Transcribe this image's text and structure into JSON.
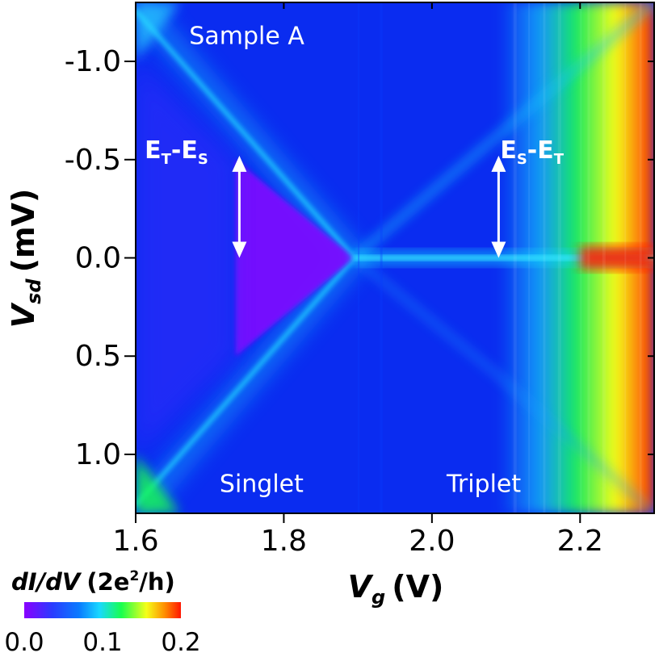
{
  "chart_data": {
    "type": "heatmap",
    "title": "",
    "xlabel": {
      "main": "V",
      "sub": "g",
      "unit": "(V)"
    },
    "ylabel": {
      "main": "V",
      "sub": "sd",
      "unit": "(mV)"
    },
    "xlim": [
      1.6,
      2.3
    ],
    "ylim": [
      -1.3,
      1.3
    ],
    "x_ticks": [
      {
        "value": 1.6,
        "label": "1.6"
      },
      {
        "value": 1.8,
        "label": "1.8"
      },
      {
        "value": 2.0,
        "label": "2.0"
      },
      {
        "value": 2.2,
        "label": "2.2"
      }
    ],
    "y_ticks": [
      {
        "value": -1.0,
        "label": "-1.0"
      },
      {
        "value": -0.5,
        "label": "-0.5"
      },
      {
        "value": 0.0,
        "label": "0.0"
      },
      {
        "value": 0.5,
        "label": "0.5"
      },
      {
        "value": 1.0,
        "label": "1.0"
      }
    ],
    "colorbar": {
      "label_main": "dI/dV",
      "label_prefix": "(2e",
      "label_sup": "2",
      "label_suffix": "/h)",
      "range": [
        0.0,
        0.2
      ],
      "ticks": [
        {
          "value": 0.0,
          "label": "0.0"
        },
        {
          "value": 0.1,
          "label": "0.1"
        },
        {
          "value": 0.2,
          "label": "0.2"
        }
      ],
      "colors": [
        "#8a00ff",
        "#2a3cff",
        "#0a55ff",
        "#19d8ff",
        "#18ff4e",
        "#f5ff18",
        "#ff4e00",
        "#ff1500"
      ]
    },
    "features": {
      "crossing_point": {
        "vg": 1.895,
        "vsd": 0.0
      },
      "singlet_gap_vsd": 0.5,
      "triplet_gap_vsd": 0.5
    },
    "annotations": {
      "sample": {
        "text": "Sample A",
        "vg": 1.75,
        "vsd": -1.13
      },
      "singlet": {
        "text": "Singlet",
        "vg": 1.77,
        "vsd": 1.15
      },
      "triplet": {
        "text": "Triplet",
        "vg": 2.07,
        "vsd": 1.15
      },
      "left_energy": {
        "base1": "E",
        "sub1": "T",
        "dash": "-",
        "base2": "E",
        "sub2": "S",
        "vg": 1.655,
        "vsd": -0.5
      },
      "right_energy": {
        "base1": "E",
        "sub1": "S",
        "dash": "-",
        "base2": "E",
        "sub2": "T",
        "vg": 2.135,
        "vsd": -0.5
      },
      "arrows": [
        {
          "vg": 1.74,
          "from_vsd": -0.52,
          "to_vsd": 0.0
        },
        {
          "vg": 2.09,
          "from_vsd": -0.52,
          "to_vsd": 0.0
        }
      ]
    }
  }
}
